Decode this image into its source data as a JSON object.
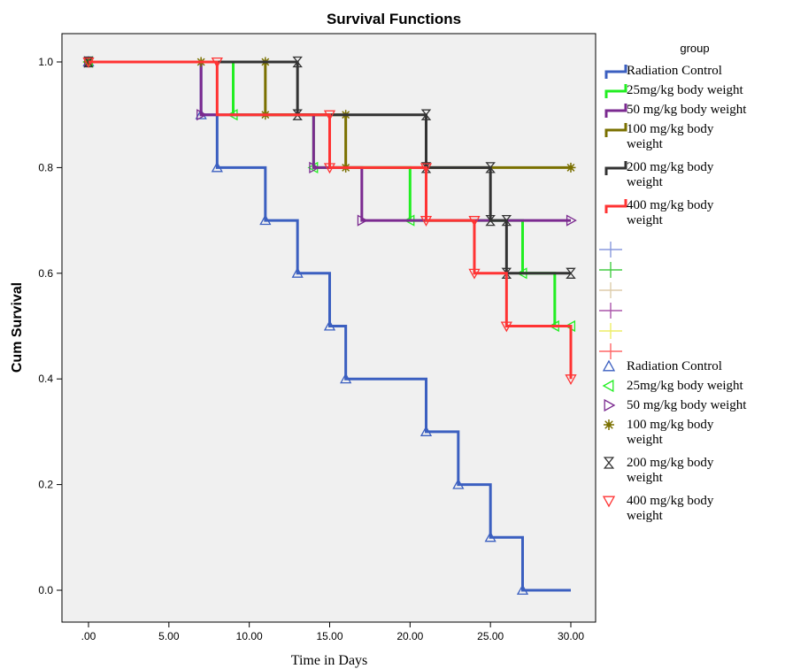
{
  "chart_data": {
    "type": "line",
    "title": "Survival Functions",
    "xlabel": "Time in Days",
    "ylabel": "Cum Survival",
    "xlim": [
      0,
      30
    ],
    "ylim": [
      0,
      1
    ],
    "x_ticks": [
      ".00",
      "5.00",
      "10.00",
      "15.00",
      "20.00",
      "25.00",
      "30.00"
    ],
    "y_ticks": [
      "0.0",
      "0.2",
      "0.4",
      "0.6",
      "0.8",
      "1.0"
    ],
    "grid": false,
    "legend_position": "right",
    "legend_title": "group",
    "series": [
      {
        "name": "Radiation Control",
        "color": "#3b5fc0",
        "marker": "triangle-up",
        "steps": [
          [
            0,
            1.0
          ],
          [
            7,
            0.9
          ],
          [
            8,
            0.8
          ],
          [
            11,
            0.7
          ],
          [
            13,
            0.6
          ],
          [
            15,
            0.5
          ],
          [
            16,
            0.4
          ],
          [
            21,
            0.3
          ],
          [
            23,
            0.2
          ],
          [
            25,
            0.1
          ],
          [
            27,
            0.0
          ]
        ],
        "censored": [
          [
            0,
            1.0
          ],
          [
            7,
            0.9
          ],
          [
            8,
            0.8
          ],
          [
            11,
            0.7
          ],
          [
            13,
            0.6
          ],
          [
            15,
            0.5
          ],
          [
            16,
            0.4
          ],
          [
            21,
            0.3
          ],
          [
            23,
            0.2
          ],
          [
            25,
            0.1
          ],
          [
            27,
            0.0
          ]
        ]
      },
      {
        "name": "25mg/kg body weight",
        "color": "#22ee22",
        "marker": "triangle-left",
        "steps": [
          [
            0,
            1.0
          ],
          [
            9,
            0.9
          ],
          [
            14,
            0.8
          ],
          [
            20,
            0.7
          ],
          [
            27,
            0.6
          ],
          [
            29,
            0.5
          ]
        ],
        "censored": [
          [
            0,
            1.0
          ],
          [
            9,
            0.9
          ],
          [
            14,
            0.8
          ],
          [
            20,
            0.7
          ],
          [
            27,
            0.6
          ],
          [
            29,
            0.5
          ],
          [
            30,
            0.5
          ]
        ]
      },
      {
        "name": "50 mg/kg body weight",
        "color": "#7b2a90",
        "marker": "triangle-right",
        "steps": [
          [
            0,
            1.0
          ],
          [
            7,
            0.9
          ],
          [
            14,
            0.8
          ],
          [
            17,
            0.7
          ]
        ],
        "censored": [
          [
            0,
            1.0
          ],
          [
            7,
            0.9
          ],
          [
            14,
            0.8
          ],
          [
            17,
            0.7
          ],
          [
            30,
            0.7
          ]
        ]
      },
      {
        "name": "100 mg/kg body weight",
        "color": "#7a7000",
        "marker": "star",
        "steps": [
          [
            0,
            1.0
          ],
          [
            11,
            0.9
          ],
          [
            16,
            0.8
          ]
        ],
        "censored": [
          [
            0,
            1.0
          ],
          [
            7,
            1.0
          ],
          [
            11,
            1.0
          ],
          [
            11,
            0.9
          ],
          [
            16,
            0.9
          ],
          [
            16,
            0.8
          ],
          [
            30,
            0.8
          ]
        ]
      },
      {
        "name": "200 mg/kg body weight",
        "color": "#333333",
        "marker": "hourglass",
        "steps": [
          [
            0,
            1.0
          ],
          [
            13,
            0.9
          ],
          [
            21,
            0.8
          ],
          [
            25,
            0.7
          ],
          [
            26,
            0.6
          ]
        ],
        "censored": [
          [
            0,
            1.0
          ],
          [
            13,
            1.0
          ],
          [
            13,
            0.9
          ],
          [
            21,
            0.9
          ],
          [
            21,
            0.8
          ],
          [
            25,
            0.8
          ],
          [
            25,
            0.7
          ],
          [
            26,
            0.7
          ],
          [
            26,
            0.6
          ],
          [
            30,
            0.6
          ]
        ]
      },
      {
        "name": "400 mg/kg body weight",
        "color": "#ff3333",
        "marker": "triangle-down",
        "steps": [
          [
            0,
            1.0
          ],
          [
            8,
            0.9
          ],
          [
            15,
            0.8
          ],
          [
            21,
            0.7
          ],
          [
            24,
            0.6
          ],
          [
            26,
            0.5
          ],
          [
            30,
            0.4
          ]
        ],
        "censored": [
          [
            0,
            1.0
          ],
          [
            8,
            1.0
          ],
          [
            15,
            0.9
          ],
          [
            15,
            0.8
          ],
          [
            21,
            0.8
          ],
          [
            21,
            0.7
          ],
          [
            24,
            0.7
          ],
          [
            24,
            0.6
          ],
          [
            26,
            0.5
          ],
          [
            30,
            0.4
          ]
        ]
      }
    ],
    "censored_legend_colors": [
      "#8899dd",
      "#44cc44",
      "#ddccaa",
      "#aa55aa",
      "#eeee66",
      "#ff6666"
    ]
  }
}
